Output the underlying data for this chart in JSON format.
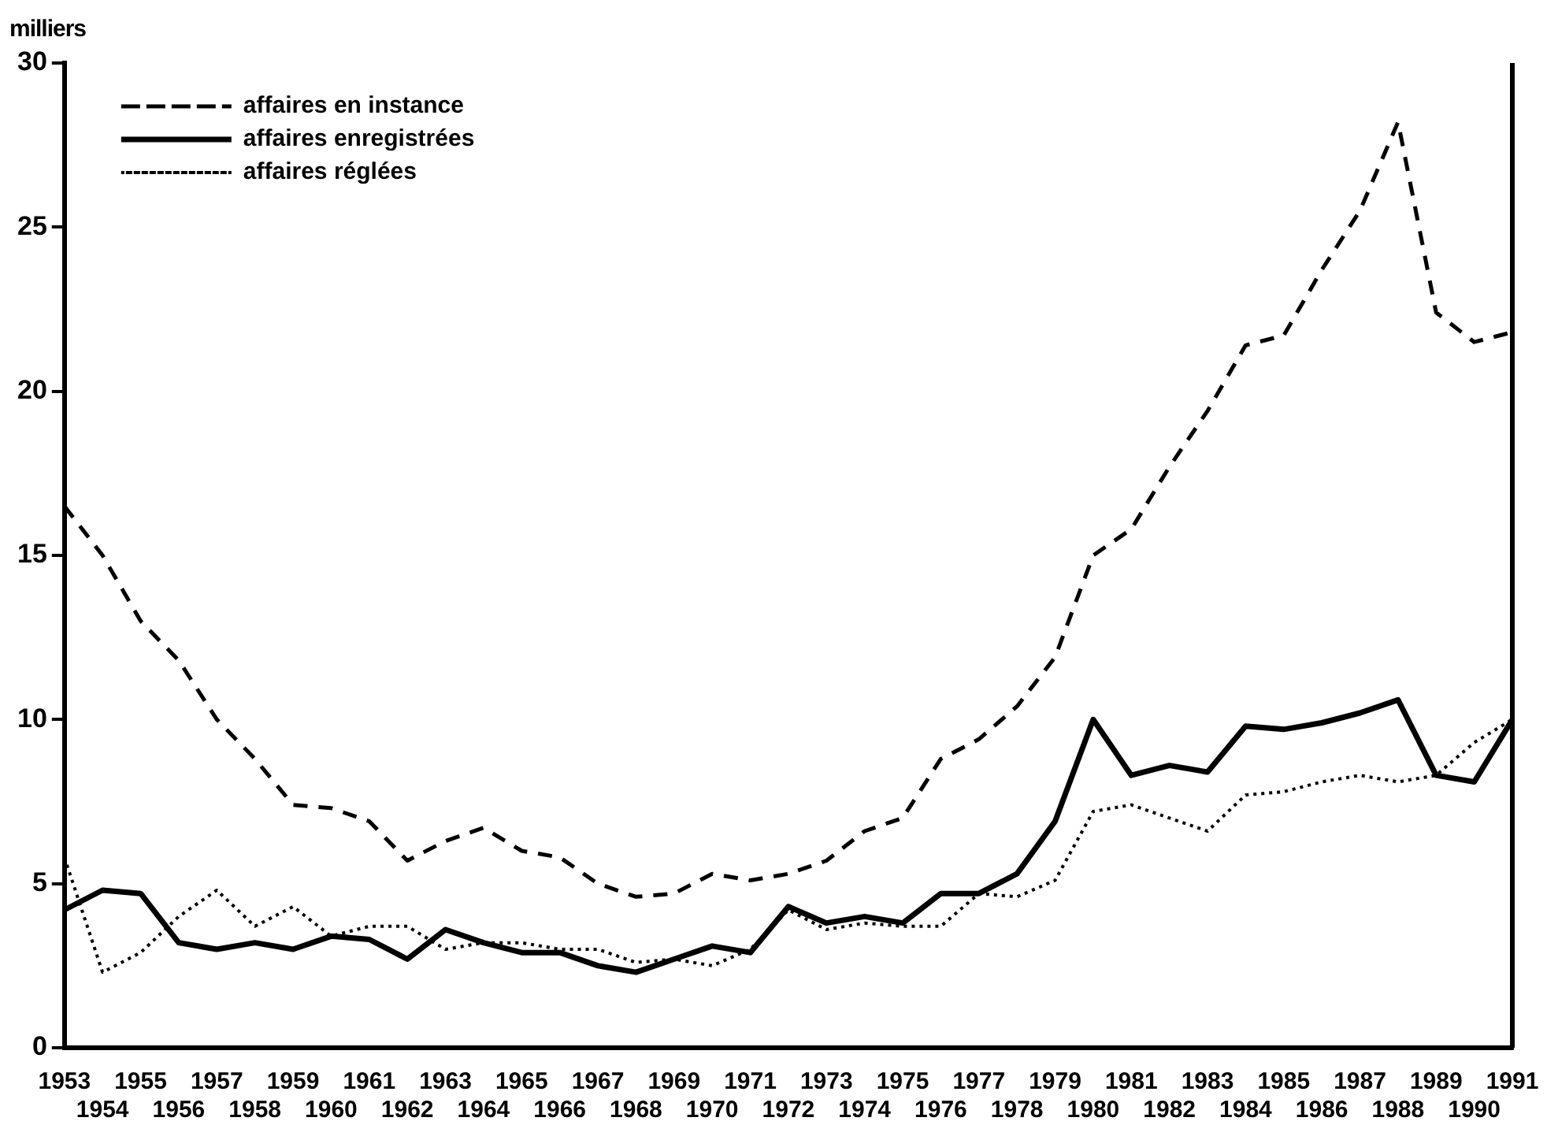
{
  "chart_data": {
    "type": "line",
    "ylabel": "milliers",
    "categories": [
      "1953",
      "1954",
      "1955",
      "1956",
      "1957",
      "1958",
      "1959",
      "1960",
      "1961",
      "1962",
      "1963",
      "1964",
      "1965",
      "1966",
      "1967",
      "1968",
      "1969",
      "1970",
      "1971",
      "1972",
      "1973",
      "1974",
      "1975",
      "1976",
      "1977",
      "1978",
      "1979",
      "1980",
      "1981",
      "1982",
      "1983",
      "1984",
      "1985",
      "1986",
      "1987",
      "1988",
      "1989",
      "1990",
      "1991"
    ],
    "series": [
      {
        "name": "affaires en instance",
        "color": "#000000",
        "line_style": "dashed",
        "values": [
          16.5,
          15.0,
          13.0,
          11.8,
          10.0,
          8.8,
          7.4,
          7.3,
          6.9,
          5.7,
          6.3,
          6.7,
          6.0,
          5.8,
          5.0,
          4.6,
          4.7,
          5.3,
          5.1,
          5.3,
          5.7,
          6.6,
          7.0,
          8.8,
          9.4,
          10.4,
          11.9,
          15.0,
          15.8,
          17.7,
          19.4,
          21.4,
          21.7,
          23.7,
          25.5,
          28.2,
          22.4,
          21.5,
          21.8
        ]
      },
      {
        "name": "affaires enregistrées",
        "color": "#000000",
        "line_style": "solid",
        "values": [
          4.2,
          4.8,
          4.7,
          3.2,
          3.0,
          3.2,
          3.0,
          3.4,
          3.3,
          2.7,
          3.6,
          3.2,
          2.9,
          2.9,
          2.5,
          2.3,
          2.7,
          3.1,
          2.9,
          4.3,
          3.8,
          4.0,
          3.8,
          4.7,
          4.7,
          5.3,
          6.9,
          10.0,
          8.3,
          8.6,
          8.4,
          9.8,
          9.7,
          9.9,
          10.2,
          10.6,
          8.3,
          8.1,
          10.0
        ]
      },
      {
        "name": "affaires réglées",
        "color": "#000000",
        "line_style": "dotted",
        "values": [
          5.8,
          2.3,
          2.9,
          4.0,
          4.8,
          3.7,
          4.3,
          3.4,
          3.7,
          3.7,
          3.0,
          3.2,
          3.2,
          3.0,
          3.0,
          2.6,
          2.7,
          2.5,
          3.0,
          4.2,
          3.6,
          3.8,
          3.7,
          3.7,
          4.7,
          4.6,
          5.1,
          7.2,
          7.4,
          7.0,
          6.6,
          7.7,
          7.8,
          8.1,
          8.3,
          8.1,
          8.3,
          9.3,
          10.0
        ]
      }
    ],
    "ylim": [
      0,
      30
    ],
    "yticks": [
      0,
      5,
      10,
      15,
      20,
      25,
      30
    ],
    "grid": false,
    "legend": "top left",
    "marker": "none"
  }
}
